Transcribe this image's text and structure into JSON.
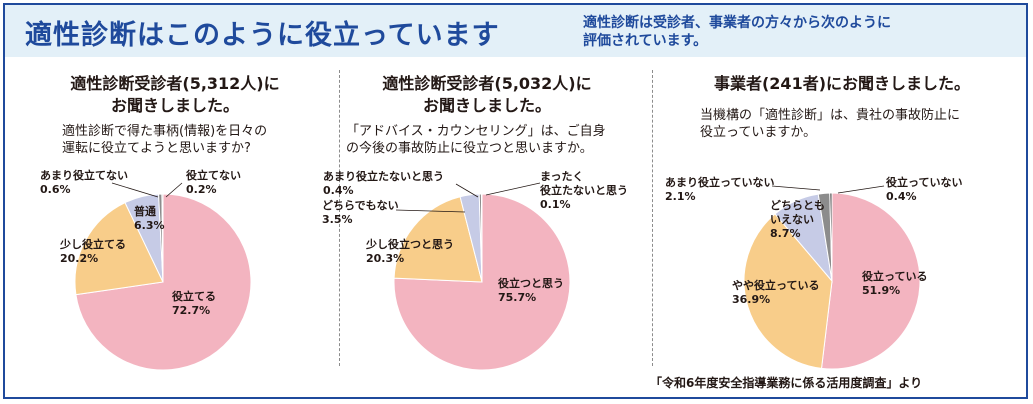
{
  "header": {
    "title": "適性診断はこのように役立っています",
    "subtitle_line1": "適性診断は受診者、事業者の方々から次のように",
    "subtitle_line2": "評価されています。"
  },
  "colors": {
    "accent": "#1f4a9c",
    "pink": "#f3b4c0",
    "orange": "#f8cd8a",
    "lavender": "#c6cbe6",
    "gray": "#8c8c8c",
    "dark": "#4a4a4a"
  },
  "source_note": "「令和6年度安全指導業務に係る活用度調査」より",
  "chart_data": [
    {
      "type": "pie",
      "heading_line1": "適性診断受診者(5,312人)に",
      "heading_line2": "お聞きしました。",
      "question_line1": "適性診断で得た事柄(情報)を日々の",
      "question_line2": "運転に役立てようと思いますか?",
      "slices": [
        {
          "label": "役立てる",
          "value": 72.7,
          "value_text": "72.7%",
          "color": "#f3b4c0"
        },
        {
          "label": "少し役立てる",
          "value": 20.2,
          "value_text": "20.2%",
          "color": "#f8cd8a"
        },
        {
          "label": "普通",
          "value": 6.3,
          "value_text": "6.3%",
          "color": "#c6cbe6"
        },
        {
          "label": "あまり役立てない",
          "value": 0.6,
          "value_text": "0.6%",
          "color": "#8c8c8c"
        },
        {
          "label": "役立てない",
          "value": 0.2,
          "value_text": "0.2%",
          "color": "#4a4a4a"
        }
      ]
    },
    {
      "type": "pie",
      "heading_line1": "適性診断受診者(5,032人)に",
      "heading_line2": "お聞きしました。",
      "question_line1": "「アドバイス・カウンセリング」は、ご自身",
      "question_line2": "の今後の事故防止に役立つと思いますか。",
      "slices": [
        {
          "label": "役立つと思う",
          "value": 75.7,
          "value_text": "75.7%",
          "color": "#f3b4c0"
        },
        {
          "label": "少し役立つと思う",
          "value": 20.3,
          "value_text": "20.3%",
          "color": "#f8cd8a"
        },
        {
          "label": "どちらでもない",
          "value": 3.5,
          "value_text": "3.5%",
          "color": "#c6cbe6"
        },
        {
          "label": "あまり役立たないと思う",
          "value": 0.4,
          "value_text": "0.4%",
          "color": "#8c8c8c"
        },
        {
          "label_line1": "まったく",
          "label_line2": "役立たないと思う",
          "value": 0.1,
          "value_text": "0.1%",
          "color": "#4a4a4a"
        }
      ]
    },
    {
      "type": "pie",
      "heading_line1": "事業者(241者)にお聞きしました。",
      "question_line1": "当機構の「適性診断」は、貴社の事故防止に",
      "question_line2": "役立っていますか。",
      "slices": [
        {
          "label": "役立っている",
          "value": 51.9,
          "value_text": "51.9%",
          "color": "#f3b4c0"
        },
        {
          "label": "やや役立っている",
          "value": 36.9,
          "value_text": "36.9%",
          "color": "#f8cd8a"
        },
        {
          "label_line1": "どちらとも",
          "label_line2": "いえない",
          "value": 8.7,
          "value_text": "8.7%",
          "color": "#c6cbe6"
        },
        {
          "label": "あまり役立っていない",
          "value": 2.1,
          "value_text": "2.1%",
          "color": "#8c8c8c"
        },
        {
          "label": "役立っていない",
          "value": 0.4,
          "value_text": "0.4%",
          "color": "#4a4a4a"
        }
      ]
    }
  ]
}
